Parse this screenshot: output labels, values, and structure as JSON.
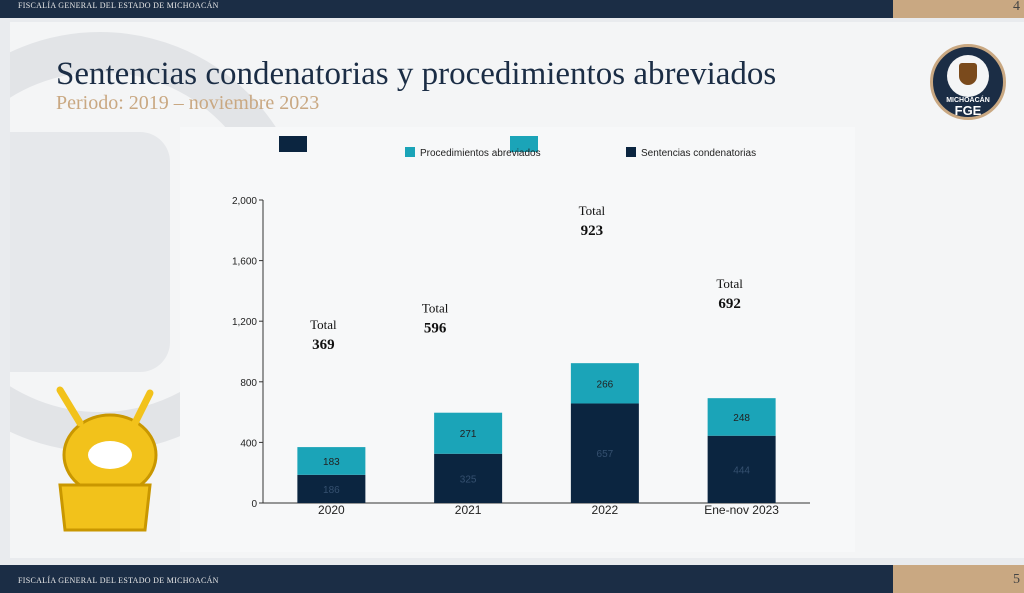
{
  "header": {
    "org_text": "FISCALÍA GENERAL DEL ESTADO DE MICHOACÁN",
    "page_number_top": "4"
  },
  "footer": {
    "org_text": "FISCALÍA GENERAL DEL ESTADO DE MICHOACÁN",
    "page_number_bottom": "5"
  },
  "slide": {
    "title": "Sentencias condenatorias y procedimientos abreviados",
    "subtitle": "Periodo: 2019 – noviembre 2023"
  },
  "logo": {
    "michoacan": "MICHOACÁN",
    "fge": "FGE"
  },
  "colors": {
    "sentencias": "#0b2540",
    "procedimientos": "#1ba4b8",
    "accent": "#c9a882",
    "dark": "#1b2d45"
  },
  "chart_data": {
    "type": "bar",
    "stacked": true,
    "categories": [
      "2020",
      "2021",
      "2022",
      "Ene-nov 2023"
    ],
    "series": [
      {
        "name": "Sentencias condenatorias",
        "values": [
          186,
          325,
          657,
          444
        ]
      },
      {
        "name": "Procedimientos abreviados",
        "values": [
          183,
          271,
          266,
          248
        ]
      }
    ],
    "totals": [
      369,
      596,
      923,
      692
    ],
    "total_label": "Total",
    "ylim": [
      0,
      2000
    ],
    "yticks": [
      0,
      400,
      800,
      1200,
      1600,
      2000
    ],
    "ytick_labels": [
      "0",
      "400",
      "800",
      "1,200",
      "1,600",
      "2,000"
    ],
    "legend": [
      {
        "label": "Procedimientos abreviados"
      },
      {
        "label": "Sentencias condenatorias"
      }
    ]
  }
}
